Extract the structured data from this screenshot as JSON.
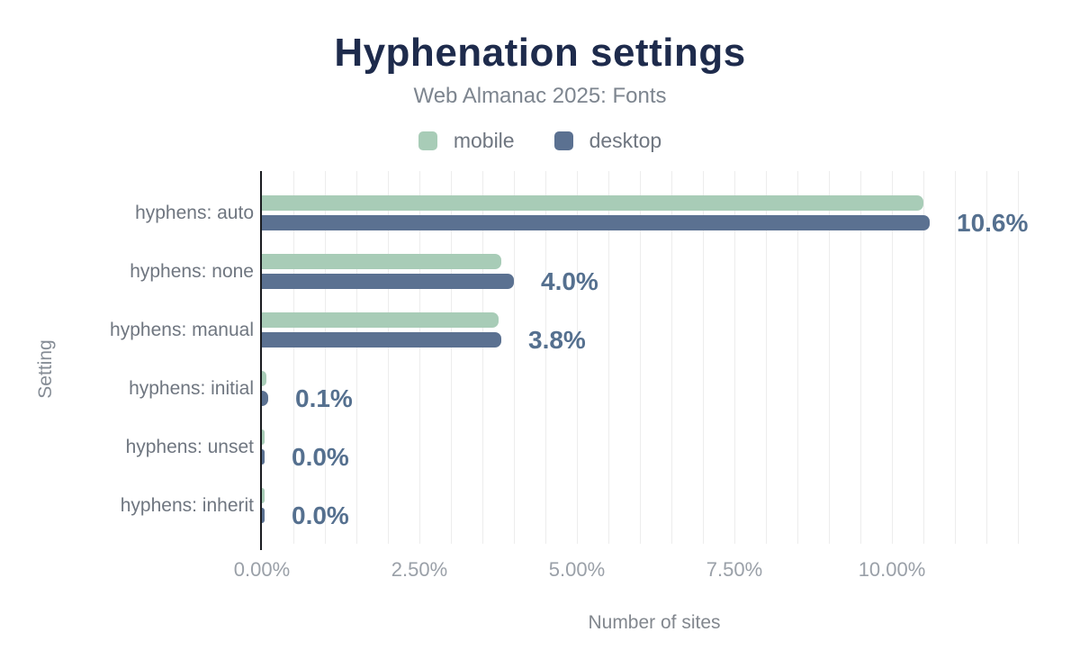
{
  "chart_data": {
    "type": "bar",
    "orientation": "horizontal",
    "title": "Hyphenation settings",
    "subtitle": "Web Almanac 2025: Fonts",
    "xlabel": "Number of sites",
    "ylabel": "Setting",
    "categories": [
      "hyphens: auto",
      "hyphens: none",
      "hyphens: manual",
      "hyphens: initial",
      "hyphens: unset",
      "hyphens: inherit"
    ],
    "series": [
      {
        "name": "mobile",
        "color": "#a8ccb7",
        "values": [
          10.5,
          3.8,
          3.75,
          0.07,
          0.03,
          0.03
        ]
      },
      {
        "name": "desktop",
        "color": "#5b7191",
        "values": [
          10.6,
          4.0,
          3.8,
          0.1,
          0.04,
          0.04
        ]
      }
    ],
    "value_labels": [
      "10.6%",
      "4.0%",
      "3.8%",
      "0.1%",
      "0.0%",
      "0.0%"
    ],
    "x_ticks": [
      {
        "value": 0,
        "label": "0.00%"
      },
      {
        "value": 2.5,
        "label": "2.50%"
      },
      {
        "value": 5,
        "label": "5.00%"
      },
      {
        "value": 7.5,
        "label": "7.50%"
      },
      {
        "value": 10,
        "label": "10.00%"
      }
    ],
    "xlim": [
      0,
      12
    ],
    "grid_step": 0.5,
    "grid": true,
    "legend_position": "top",
    "colors": {
      "title": "#1e2b4c",
      "subtitle": "#7d858f",
      "category_label": "#6f7680",
      "value_label": "#55708f",
      "tick_label": "#9aa0a8",
      "axis_line": "#1a1c20",
      "gridline": "#ededed",
      "background": "#ffffff"
    }
  }
}
